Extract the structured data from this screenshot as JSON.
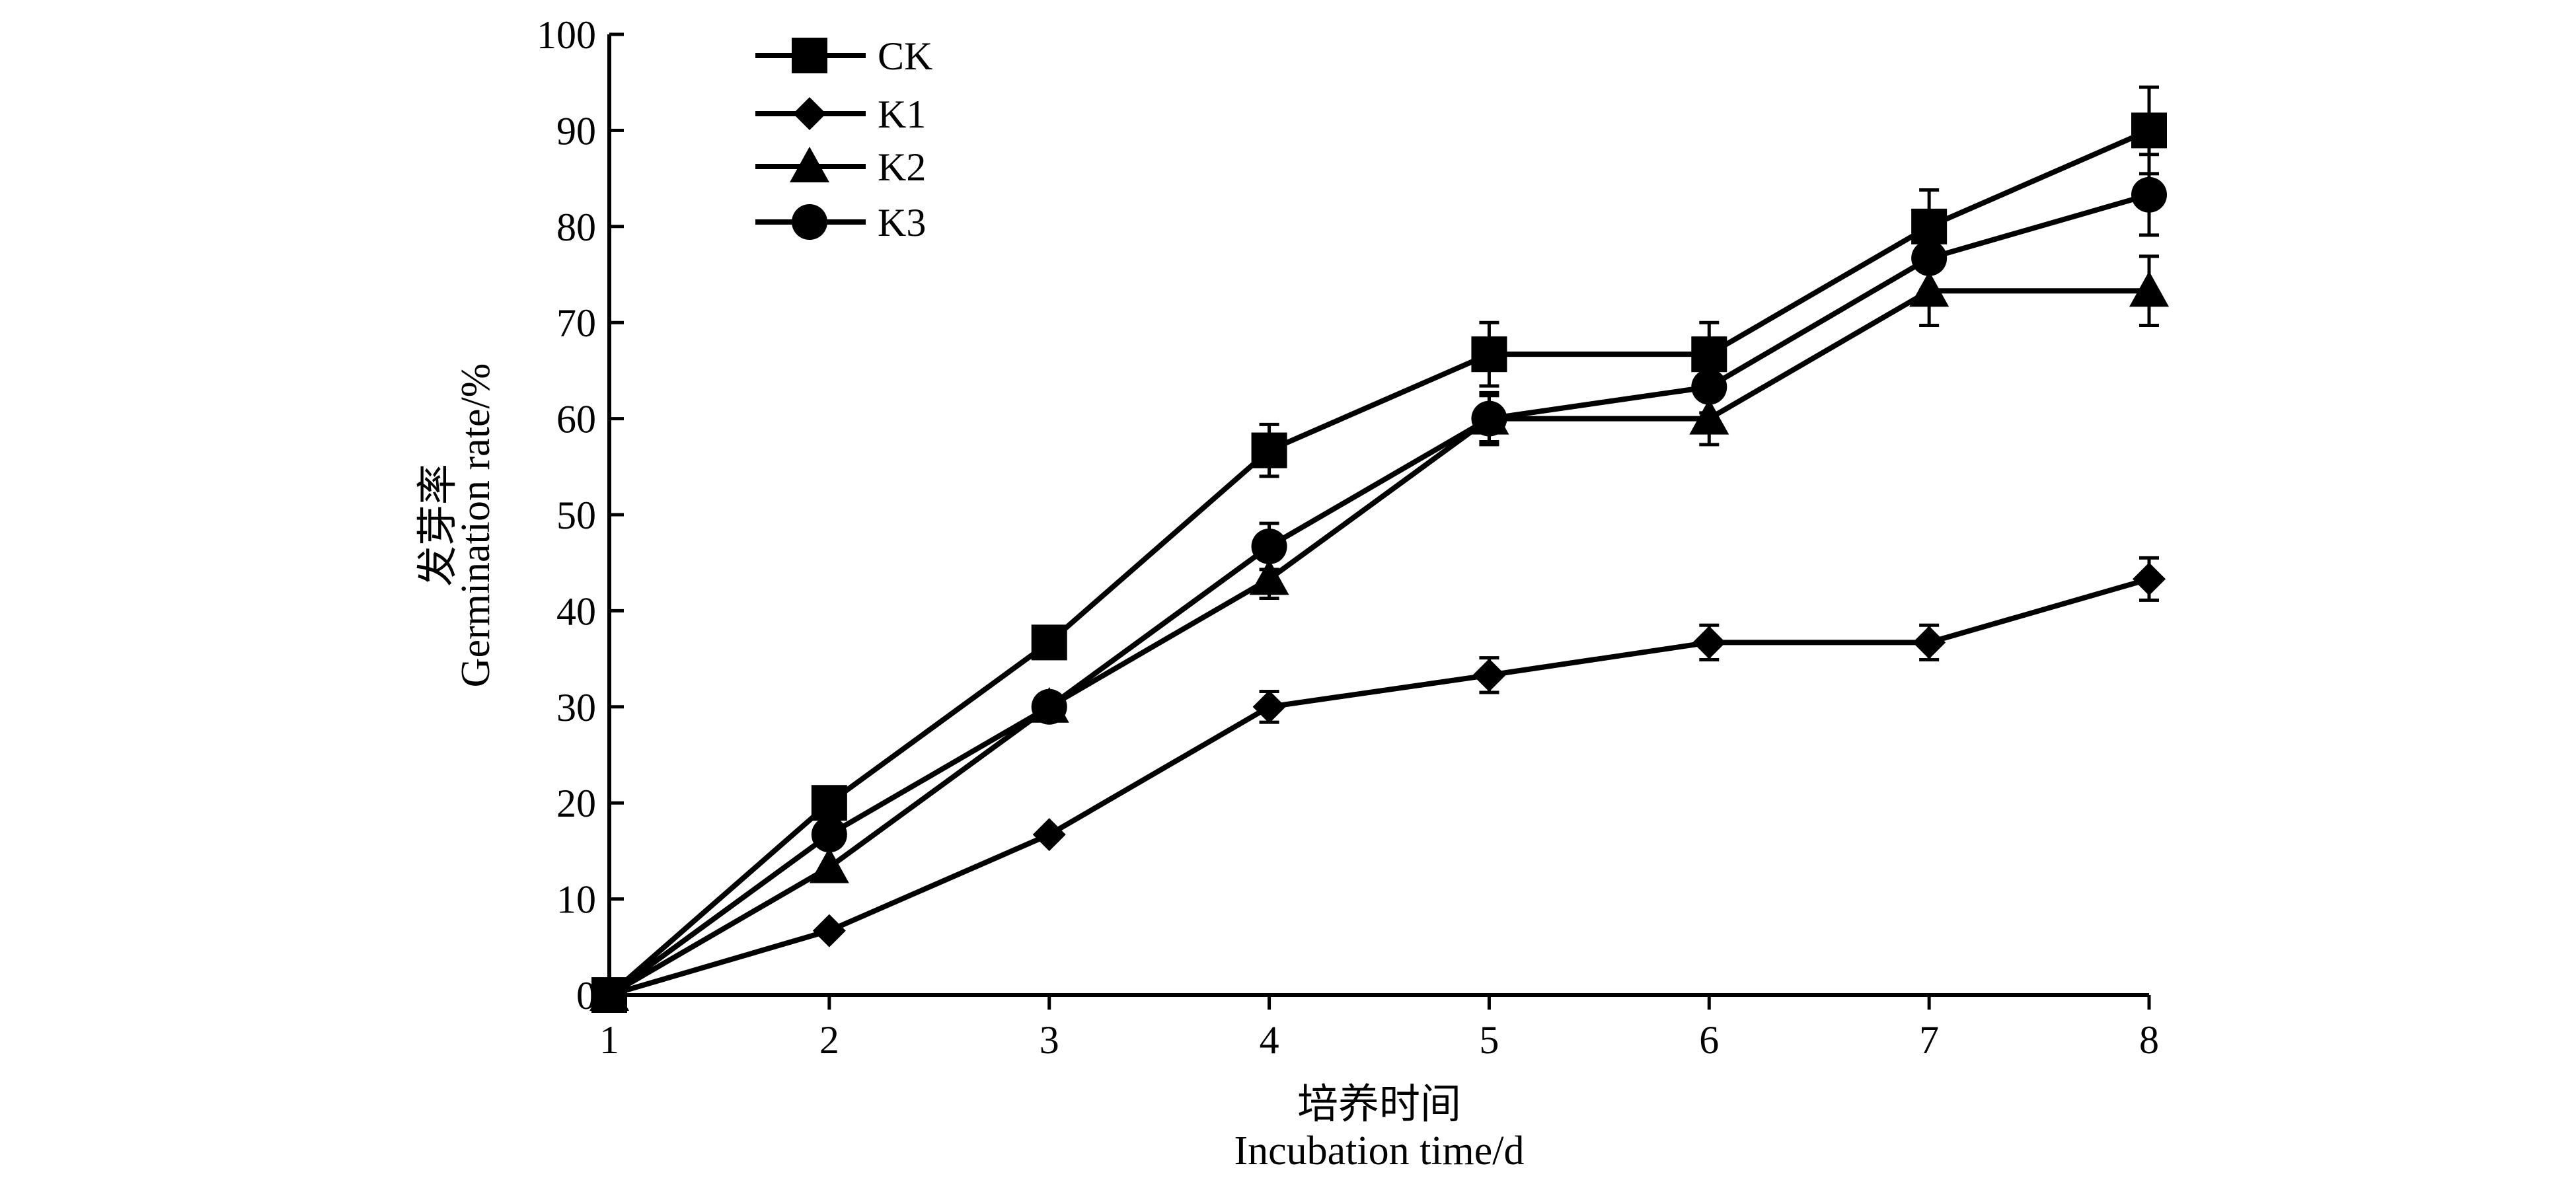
{
  "chart_data": {
    "type": "line",
    "title": "",
    "xlabel": [
      "培养时间",
      "Incubation time/d"
    ],
    "ylabel": [
      "发芽率",
      "Germination rate/%"
    ],
    "x": [
      1,
      2,
      3,
      4,
      5,
      6,
      7,
      8
    ],
    "xlim": [
      1,
      8
    ],
    "ylim": [
      0,
      100
    ],
    "yticks": [
      0,
      10,
      20,
      30,
      40,
      50,
      60,
      70,
      80,
      90,
      100
    ],
    "grid": false,
    "legend_position": "top-left",
    "series": [
      {
        "name": "CK",
        "marker": "square",
        "values": [
          0,
          20,
          36.7,
          56.7,
          66.7,
          66.7,
          80,
          90
        ],
        "errors": [
          0,
          0,
          0,
          2.7,
          3.3,
          3.3,
          3.8,
          4.5
        ]
      },
      {
        "name": "K1",
        "marker": "diamond",
        "values": [
          0,
          6.7,
          16.7,
          30,
          33.3,
          36.7,
          36.7,
          43.3
        ],
        "errors": [
          0,
          0,
          0,
          1.6,
          1.8,
          1.8,
          1.8,
          2.2
        ]
      },
      {
        "name": "K2",
        "marker": "triangle",
        "values": [
          0,
          13.3,
          30,
          43.3,
          60,
          60,
          73.3,
          73.3
        ],
        "errors": [
          0,
          0,
          0,
          2.0,
          2.4,
          2.7,
          3.6,
          3.6
        ]
      },
      {
        "name": "K3",
        "marker": "circle",
        "values": [
          0,
          16.7,
          30,
          46.7,
          60,
          63.3,
          76.7,
          83.3
        ],
        "errors": [
          0,
          0,
          0,
          2.4,
          2.7,
          2.7,
          3.3,
          4.2
        ]
      }
    ]
  }
}
